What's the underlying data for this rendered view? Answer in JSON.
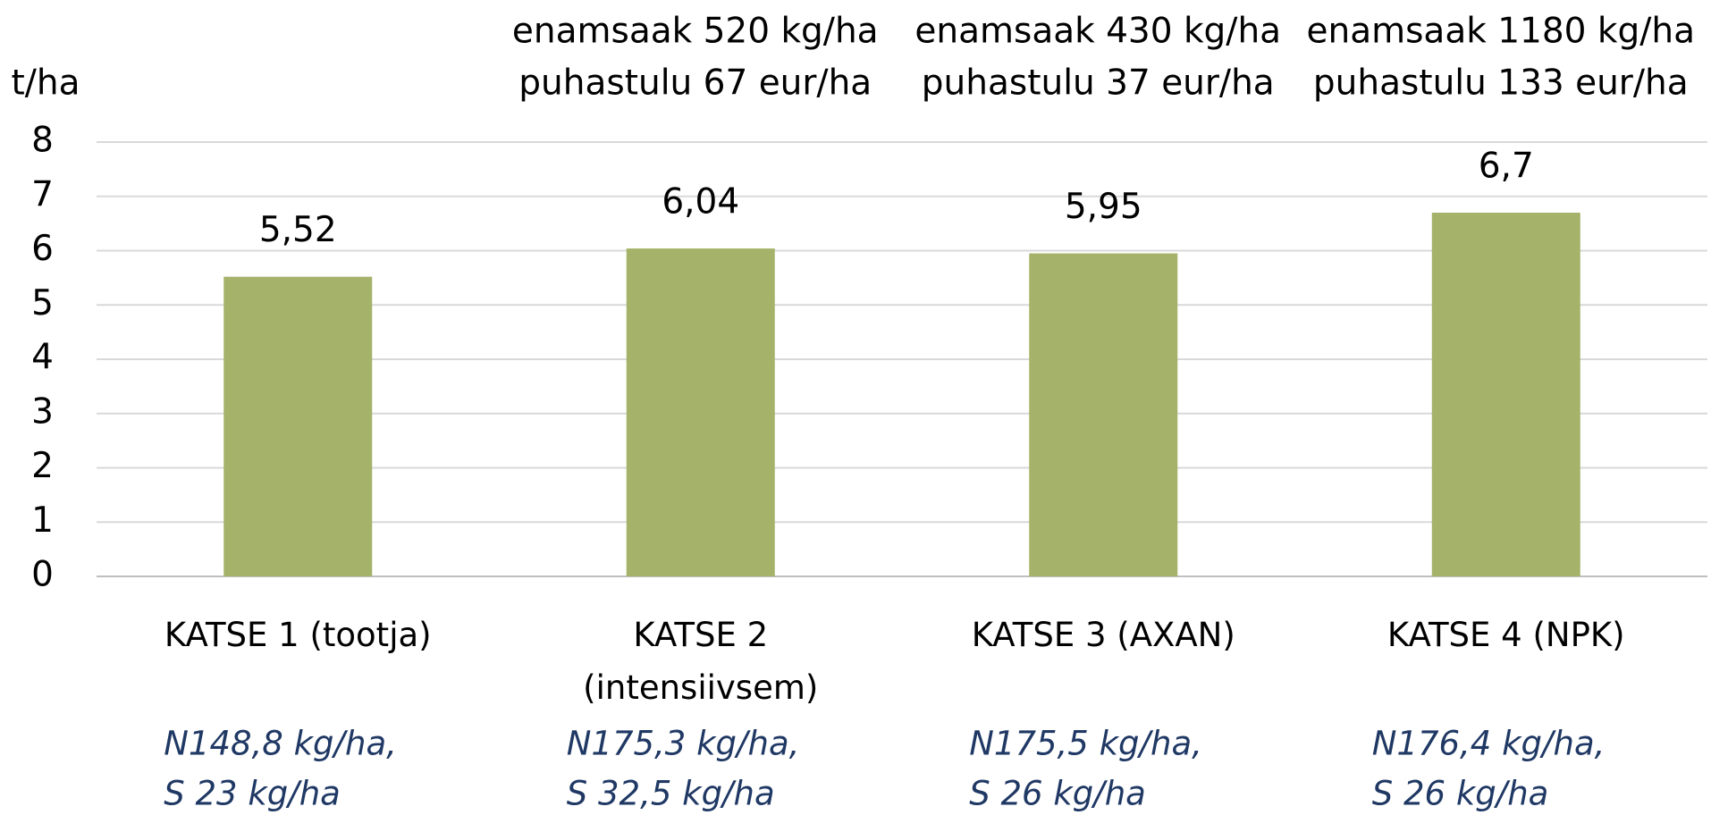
{
  "chart_data": {
    "type": "bar",
    "y_label": "t/ha",
    "categories": [
      "KATSE 1 (tootja)",
      "KATSE 2 (intensiivsem)",
      "KATSE 3 (AXAN)",
      "KATSE 4 (NPK)"
    ],
    "values": [
      5.52,
      6.04,
      5.95,
      6.7
    ],
    "value_labels": [
      "5,52",
      "6,04",
      "5,95",
      "6,7"
    ],
    "color": "#a5b26a",
    "ylim": [
      0,
      8
    ],
    "yticks": [
      0,
      1,
      2,
      3,
      4,
      5,
      6,
      7,
      8
    ],
    "grid": true,
    "annotations": [
      null,
      [
        "enamsaak 520 kg/ha",
        "puhastulu 67 eur/ha"
      ],
      [
        "enamsaak 430 kg/ha",
        "puhastulu 37 eur/ha"
      ],
      [
        "enamsaak 1180 kg/ha",
        "puhastulu 133 eur/ha"
      ]
    ],
    "notes": [
      [
        "N148,8 kg/ha,",
        "S 23 kg/ha"
      ],
      [
        "N175,3 kg/ha,",
        "S 32,5 kg/ha"
      ],
      [
        "N175,5 kg/ha,",
        "S 26 kg/ha"
      ],
      [
        "N176,4 kg/ha,",
        "S 26 kg/ha"
      ]
    ]
  }
}
